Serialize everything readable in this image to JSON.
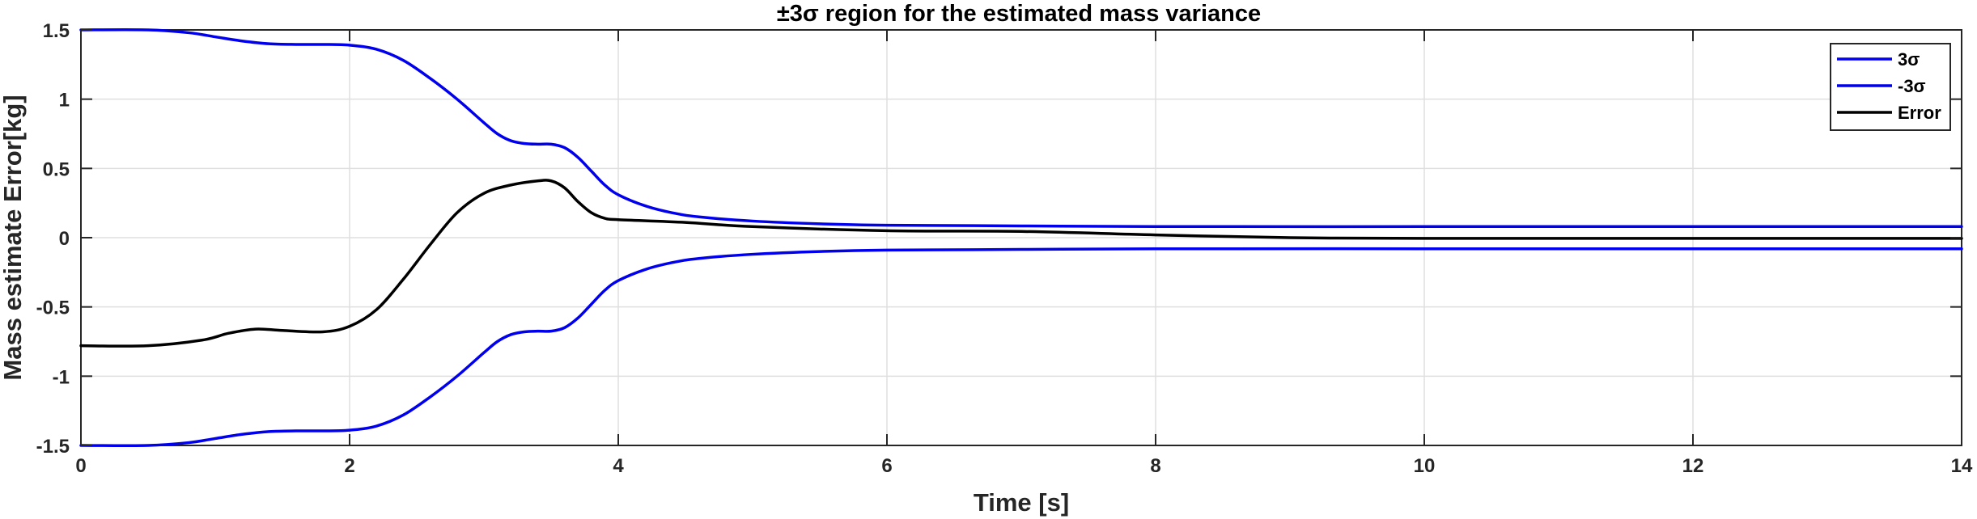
{
  "chart_data": {
    "type": "line",
    "title": "±3σ region for the estimated mass variance",
    "xlabel": "Time [s]",
    "ylabel": "Mass estimate Error[kg]",
    "xlim": [
      0,
      14
    ],
    "ylim": [
      -1.5,
      1.5
    ],
    "xticks": [
      0,
      2,
      4,
      6,
      8,
      10,
      12,
      14
    ],
    "xtick_labels": [
      "0",
      "2",
      "4",
      "6",
      "8",
      "10",
      "12",
      "14"
    ],
    "yticks": [
      1.5,
      1,
      0.5,
      0,
      -0.5,
      -1,
      -1.5
    ],
    "ytick_labels": [
      "1.5",
      "1",
      "0.5",
      "0",
      "-0.5",
      "-1",
      "-1.5"
    ],
    "grid": true,
    "legend_position": "top-right",
    "series": [
      {
        "name": "3σ",
        "color": "#0000ee",
        "x": [
          0,
          0.5,
          0.8,
          1.0,
          1.2,
          1.4,
          1.6,
          1.8,
          2.0,
          2.2,
          2.4,
          2.6,
          2.8,
          3.0,
          3.1,
          3.2,
          3.3,
          3.4,
          3.5,
          3.6,
          3.7,
          3.8,
          3.9,
          4.0,
          4.2,
          4.4,
          4.6,
          5.0,
          5.5,
          6.0,
          7.0,
          8.0,
          10.0,
          12.0,
          14.0
        ],
        "y": [
          1.5,
          1.5,
          1.48,
          1.45,
          1.42,
          1.4,
          1.395,
          1.395,
          1.39,
          1.36,
          1.28,
          1.15,
          1.0,
          0.83,
          0.75,
          0.7,
          0.68,
          0.675,
          0.675,
          0.65,
          0.58,
          0.48,
          0.38,
          0.31,
          0.23,
          0.18,
          0.15,
          0.12,
          0.1,
          0.09,
          0.085,
          0.08,
          0.08,
          0.08,
          0.08
        ]
      },
      {
        "name": "-3σ",
        "color": "#0000ee",
        "x": [
          0,
          0.5,
          0.8,
          1.0,
          1.2,
          1.4,
          1.6,
          1.8,
          2.0,
          2.2,
          2.4,
          2.6,
          2.8,
          3.0,
          3.1,
          3.2,
          3.3,
          3.4,
          3.5,
          3.6,
          3.7,
          3.8,
          3.9,
          4.0,
          4.2,
          4.4,
          4.6,
          5.0,
          5.5,
          6.0,
          7.0,
          8.0,
          10.0,
          12.0,
          14.0
        ],
        "y": [
          -1.5,
          -1.5,
          -1.48,
          -1.45,
          -1.42,
          -1.4,
          -1.395,
          -1.395,
          -1.39,
          -1.36,
          -1.28,
          -1.15,
          -1.0,
          -0.83,
          -0.75,
          -0.7,
          -0.68,
          -0.675,
          -0.675,
          -0.65,
          -0.58,
          -0.48,
          -0.38,
          -0.31,
          -0.23,
          -0.18,
          -0.15,
          -0.12,
          -0.1,
          -0.09,
          -0.085,
          -0.08,
          -0.08,
          -0.08,
          -0.08
        ]
      },
      {
        "name": "Error",
        "color": "#000000",
        "x": [
          0,
          0.5,
          0.9,
          1.1,
          1.3,
          1.5,
          1.8,
          2.0,
          2.2,
          2.4,
          2.6,
          2.8,
          3.0,
          3.2,
          3.4,
          3.5,
          3.6,
          3.7,
          3.8,
          3.9,
          4.0,
          4.5,
          5.0,
          6.0,
          7.0,
          8.0,
          9.0,
          10.0,
          12.0,
          14.0
        ],
        "y": [
          -0.78,
          -0.78,
          -0.74,
          -0.69,
          -0.66,
          -0.67,
          -0.68,
          -0.64,
          -0.52,
          -0.3,
          -0.05,
          0.18,
          0.32,
          0.38,
          0.41,
          0.41,
          0.36,
          0.26,
          0.18,
          0.14,
          0.13,
          0.11,
          0.08,
          0.05,
          0.045,
          0.02,
          0.0,
          -0.005,
          -0.005,
          -0.005
        ]
      }
    ]
  }
}
